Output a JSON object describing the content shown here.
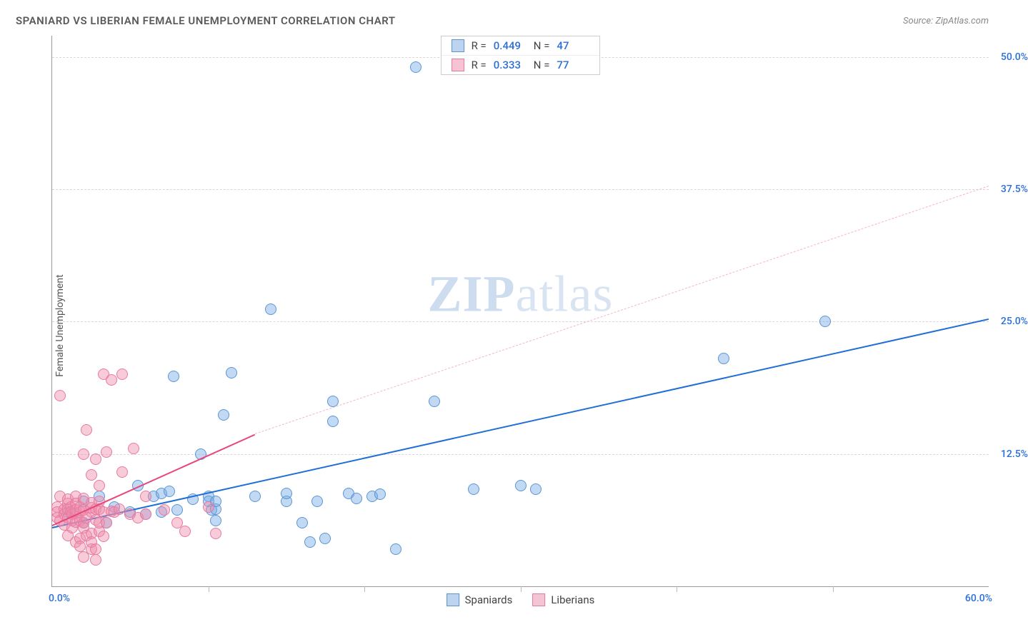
{
  "header": {
    "title": "SPANIARD VS LIBERIAN FEMALE UNEMPLOYMENT CORRELATION CHART",
    "source_prefix": "Source: ",
    "source_name": "ZipAtlas.com"
  },
  "watermark": {
    "zip": "ZIP",
    "atlas": "atlas"
  },
  "chart": {
    "type": "scatter",
    "ylabel": "Female Unemployment",
    "xlim": [
      0,
      60
    ],
    "ylim": [
      0,
      52
    ],
    "x_origin_label": "0.0%",
    "x_max_label": "60.0%",
    "y_gridlines": [
      {
        "v": 12.5,
        "label": "12.5%"
      },
      {
        "v": 25.0,
        "label": "25.0%"
      },
      {
        "v": 37.5,
        "label": "37.5%"
      },
      {
        "v": 50.0,
        "label": "50.0%"
      }
    ],
    "x_ticks": [
      10,
      20,
      30,
      40,
      50
    ],
    "label_color": "#2b6fd6",
    "grid_color": "#d8d8d8",
    "background_color": "#ffffff",
    "series": [
      {
        "name": "Spaniards",
        "marker_fill": "rgba(120,170,230,0.45)",
        "marker_stroke": "#5a96d6",
        "marker_size": 16,
        "swatch_fill": "#bcd4ef",
        "swatch_stroke": "#5a96d6",
        "trend": {
          "x1": 0,
          "y1": 5.6,
          "x2": 60,
          "y2": 25.3,
          "color": "#1f6fd6",
          "width": 2.5,
          "dash": "none"
        },
        "R": "0.449",
        "N": "47",
        "points": [
          [
            1,
            7
          ],
          [
            2,
            8
          ],
          [
            2,
            6
          ],
          [
            3,
            8.5
          ],
          [
            3.5,
            6
          ],
          [
            4,
            7.5
          ],
          [
            5,
            7
          ],
          [
            5.5,
            9.5
          ],
          [
            6,
            6.8
          ],
          [
            6.5,
            8.5
          ],
          [
            7,
            7
          ],
          [
            7,
            8.8
          ],
          [
            7.5,
            9
          ],
          [
            7.8,
            19.8
          ],
          [
            8,
            7.2
          ],
          [
            9,
            8.2
          ],
          [
            9.5,
            12.5
          ],
          [
            10,
            8.5
          ],
          [
            10,
            8
          ],
          [
            10.2,
            7.2
          ],
          [
            10.5,
            6.2
          ],
          [
            10.5,
            7.3
          ],
          [
            10.5,
            8
          ],
          [
            11,
            16.2
          ],
          [
            11.5,
            20.2
          ],
          [
            13,
            8.5
          ],
          [
            14,
            26.2
          ],
          [
            15,
            8
          ],
          [
            15,
            8.8
          ],
          [
            16,
            6
          ],
          [
            16.5,
            4.2
          ],
          [
            17,
            8.0
          ],
          [
            17.5,
            4.5
          ],
          [
            18,
            17.5
          ],
          [
            18,
            15.6
          ],
          [
            19,
            8.8
          ],
          [
            19.5,
            8.3
          ],
          [
            20.5,
            8.5
          ],
          [
            21,
            8.7
          ],
          [
            22,
            3.5
          ],
          [
            23.3,
            49
          ],
          [
            24.5,
            17.5
          ],
          [
            27,
            9.2
          ],
          [
            30,
            9.5
          ],
          [
            31,
            9.2
          ],
          [
            43,
            21.5
          ],
          [
            49.5,
            25
          ]
        ]
      },
      {
        "name": "Liberians",
        "marker_fill": "rgba(240,140,170,0.45)",
        "marker_stroke": "#e67aa0",
        "marker_size": 16,
        "swatch_fill": "#f5c4d4",
        "swatch_stroke": "#e67aa0",
        "trend_solid": {
          "x1": 0,
          "y1": 5.8,
          "x2": 13,
          "y2": 14.4,
          "color": "#e8457a",
          "width": 2.5
        },
        "trend_dash": {
          "x1": 13,
          "y1": 14.4,
          "x2": 60,
          "y2": 37.8,
          "color": "#f5b5c9",
          "width": 1.5
        },
        "R": "0.333",
        "N": "77",
        "points": [
          [
            0.3,
            6.5
          ],
          [
            0.3,
            7.5
          ],
          [
            0.3,
            7
          ],
          [
            0.5,
            6.2
          ],
          [
            0.5,
            8.5
          ],
          [
            0.5,
            18
          ],
          [
            0.8,
            6.8
          ],
          [
            0.8,
            7.3
          ],
          [
            0.8,
            5.8
          ],
          [
            1,
            7.8
          ],
          [
            1,
            7.3
          ],
          [
            1,
            4.8
          ],
          [
            1,
            8.2
          ],
          [
            1,
            6.5
          ],
          [
            1.2,
            7.5
          ],
          [
            1.2,
            7.0
          ],
          [
            1.3,
            5.5
          ],
          [
            1.3,
            6.8
          ],
          [
            1.3,
            6.2
          ],
          [
            1.5,
            4.2
          ],
          [
            1.5,
            6.9
          ],
          [
            1.5,
            8.5
          ],
          [
            1.5,
            7.8
          ],
          [
            1.5,
            6.1
          ],
          [
            1.5,
            7.2
          ],
          [
            1.8,
            7.0
          ],
          [
            1.8,
            7.5
          ],
          [
            1.8,
            6.2
          ],
          [
            1.8,
            4.5
          ],
          [
            1.8,
            3.8
          ],
          [
            2,
            2.8
          ],
          [
            2,
            5.5
          ],
          [
            2,
            6.0
          ],
          [
            2,
            12.5
          ],
          [
            2,
            8.3
          ],
          [
            2,
            7.2
          ],
          [
            2.2,
            4.8
          ],
          [
            2.2,
            14.8
          ],
          [
            2.2,
            6.5
          ],
          [
            2.5,
            3.5
          ],
          [
            2.5,
            5.0
          ],
          [
            2.5,
            7.0
          ],
          [
            2.5,
            7.4
          ],
          [
            2.5,
            7.9
          ],
          [
            2.5,
            10.5
          ],
          [
            2.5,
            4.2
          ],
          [
            2.8,
            2.5
          ],
          [
            2.8,
            3.5
          ],
          [
            2.8,
            12.0
          ],
          [
            2.8,
            6.3
          ],
          [
            2.8,
            7.3
          ],
          [
            3,
            5.2
          ],
          [
            3,
            8.0
          ],
          [
            3,
            9.5
          ],
          [
            3,
            7.3
          ],
          [
            3,
            6.0
          ],
          [
            3.3,
            20
          ],
          [
            3.3,
            4.7
          ],
          [
            3.3,
            7.0
          ],
          [
            3.5,
            6.0
          ],
          [
            3.5,
            12.7
          ],
          [
            3.8,
            7.1
          ],
          [
            3.8,
            19.5
          ],
          [
            4,
            7.0
          ],
          [
            4.3,
            7.3
          ],
          [
            4.5,
            10.8
          ],
          [
            4.5,
            20
          ],
          [
            5,
            6.8
          ],
          [
            5.2,
            13
          ],
          [
            5.5,
            6.5
          ],
          [
            6,
            8.5
          ],
          [
            6,
            6.8
          ],
          [
            7.2,
            7.2
          ],
          [
            8,
            6.0
          ],
          [
            8.5,
            5.2
          ],
          [
            10,
            7.5
          ],
          [
            10.5,
            5.0
          ]
        ]
      }
    ],
    "legend_stats_labels": {
      "R": "R =",
      "N": "N ="
    },
    "bottom_legend": [
      "Spaniards",
      "Liberians"
    ]
  }
}
